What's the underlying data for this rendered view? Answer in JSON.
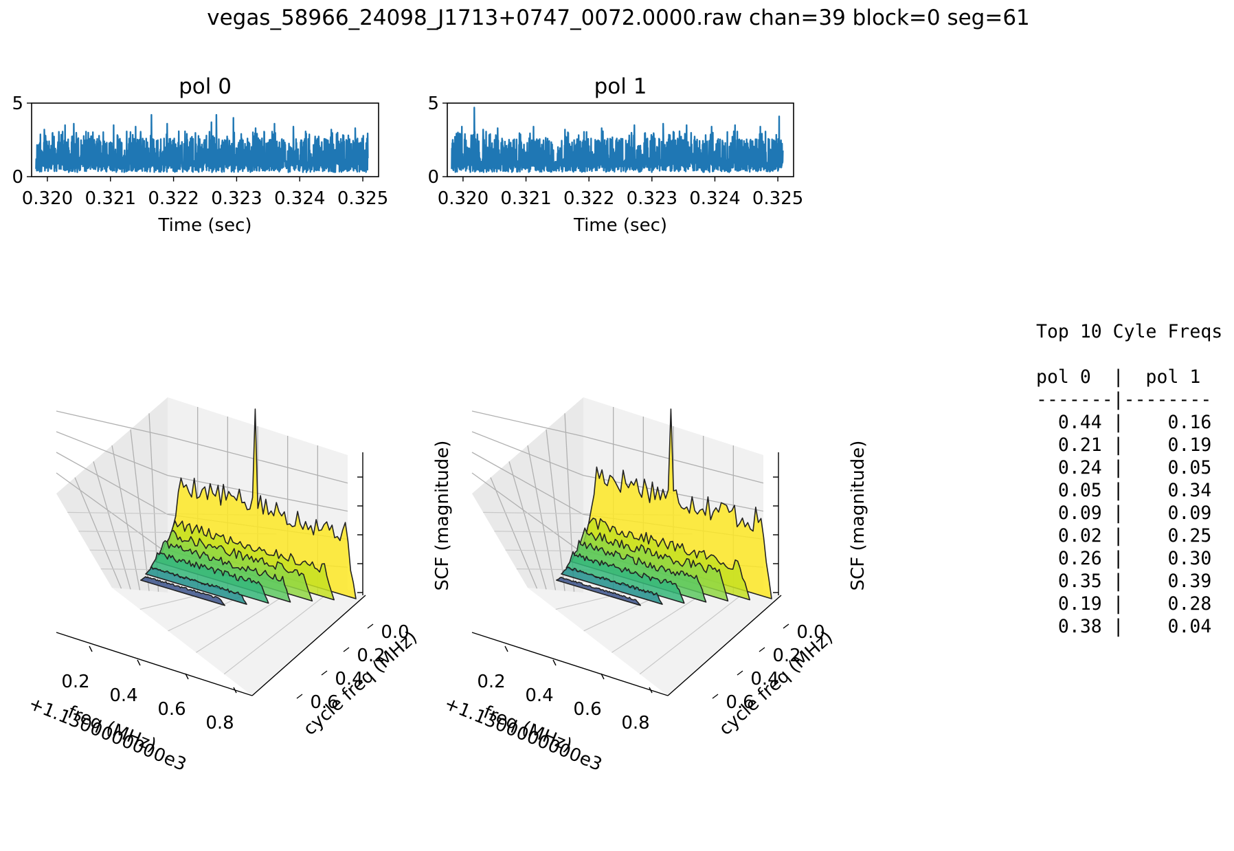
{
  "title": "vegas_58966_24098_J1713+0747_0072.0000.raw chan=39 block=0 seg=61",
  "chart_data": [
    {
      "type": "line",
      "title": "pol 0",
      "xlabel": "Time (sec)",
      "ylabel": "",
      "xlim": [
        0.31975,
        0.32525
      ],
      "ylim": [
        0,
        5
      ],
      "xticks": [
        "0.320",
        "0.321",
        "0.322",
        "0.323",
        "0.324",
        "0.325"
      ],
      "yticks": [
        "0",
        "5"
      ],
      "color": "#1f77b4",
      "series": [
        {
          "x_range": [
            0.31982,
            0.32508
          ],
          "points": 1600,
          "typical_range": [
            0.3,
            2.6
          ],
          "max": 4.2,
          "spikes": [
            [
              0.31995,
              3.2
            ],
            [
              0.32028,
              3.5
            ],
            [
              0.32042,
              3.6
            ],
            [
              0.32105,
              3.5
            ],
            [
              0.3214,
              3.4
            ],
            [
              0.32165,
              4.2
            ],
            [
              0.3219,
              3.6
            ],
            [
              0.3226,
              3.7
            ],
            [
              0.32268,
              4.2
            ],
            [
              0.32295,
              4.0
            ],
            [
              0.3233,
              3.3
            ],
            [
              0.3236,
              3.6
            ],
            [
              0.3239,
              3.4
            ],
            [
              0.3245,
              3.2
            ],
            [
              0.32488,
              3.3
            ]
          ]
        }
      ]
    },
    {
      "type": "line",
      "title": "pol 1",
      "xlabel": "Time (sec)",
      "ylabel": "",
      "xlim": [
        0.31975,
        0.32525
      ],
      "ylim": [
        0,
        5
      ],
      "xticks": [
        "0.320",
        "0.321",
        "0.322",
        "0.323",
        "0.324",
        "0.325"
      ],
      "yticks": [
        "0",
        "5"
      ],
      "color": "#1f77b4",
      "series": [
        {
          "x_range": [
            0.31982,
            0.32508
          ],
          "points": 1600,
          "typical_range": [
            0.3,
            2.6
          ],
          "max": 4.7,
          "spikes": [
            [
              0.31998,
              3.4
            ],
            [
              0.32018,
              4.7
            ],
            [
              0.32032,
              3.2
            ],
            [
              0.32055,
              3.3
            ],
            [
              0.32112,
              3.4
            ],
            [
              0.32162,
              3.2
            ],
            [
              0.3222,
              3.3
            ],
            [
              0.32272,
              3.5
            ],
            [
              0.32318,
              3.6
            ],
            [
              0.32355,
              3.5
            ],
            [
              0.32395,
              3.4
            ],
            [
              0.32432,
              3.5
            ],
            [
              0.32472,
              3.4
            ],
            [
              0.32502,
              4.1
            ]
          ]
        }
      ]
    },
    {
      "type": "area",
      "subtype": "3d-waterfall",
      "title": "",
      "xlabel": "freq (MHz)",
      "x_offset_label": "+1.1300000000e3",
      "ylabel": "cycle freq (MHz)",
      "zlabel": "SCF (magnitude)",
      "xticks": [
        "0.2",
        "0.4",
        "0.6",
        "0.8"
      ],
      "yticks": [
        "0.0",
        "0.2",
        "0.4",
        "0.6"
      ],
      "colormap": "viridis",
      "ridges": [
        {
          "cycle_freq": 0.0,
          "color": "#fde725",
          "level": 0.62,
          "peak": 1.0
        },
        {
          "cycle_freq": 0.1,
          "color": "#c5e021",
          "level": 0.28,
          "peak": 0.5
        },
        {
          "cycle_freq": 0.2,
          "color": "#90d743",
          "level": 0.24,
          "peak": 0.45
        },
        {
          "cycle_freq": 0.3,
          "color": "#5ec962",
          "level": 0.2,
          "peak": 0.35
        },
        {
          "cycle_freq": 0.4,
          "color": "#35b779",
          "level": 0.16,
          "peak": 0.3
        },
        {
          "cycle_freq": 0.5,
          "color": "#21918c",
          "level": 0.08,
          "peak": 0.18
        },
        {
          "cycle_freq": 0.6,
          "color": "#3b528b",
          "level": 0.05,
          "peak": 0.12
        }
      ]
    },
    {
      "type": "area",
      "subtype": "3d-waterfall",
      "title": "",
      "xlabel": "freq (MHz)",
      "x_offset_label": "+1.1300000000e3",
      "ylabel": "cycle freq (MHz)",
      "zlabel": "SCF (magnitude)",
      "xticks": [
        "0.2",
        "0.4",
        "0.6",
        "0.8"
      ],
      "yticks": [
        "0.0",
        "0.2",
        "0.4",
        "0.6"
      ],
      "colormap": "viridis",
      "ridges": [
        {
          "cycle_freq": 0.0,
          "color": "#fde725",
          "level": 0.72,
          "peak": 1.0
        },
        {
          "cycle_freq": 0.1,
          "color": "#c5e021",
          "level": 0.3,
          "peak": 0.5
        },
        {
          "cycle_freq": 0.2,
          "color": "#90d743",
          "level": 0.25,
          "peak": 0.42
        },
        {
          "cycle_freq": 0.3,
          "color": "#5ec962",
          "level": 0.2,
          "peak": 0.35
        },
        {
          "cycle_freq": 0.4,
          "color": "#35b779",
          "level": 0.15,
          "peak": 0.28
        },
        {
          "cycle_freq": 0.5,
          "color": "#21918c",
          "level": 0.08,
          "peak": 0.16
        },
        {
          "cycle_freq": 0.6,
          "color": "#3b528b",
          "level": 0.04,
          "peak": 0.1
        }
      ]
    },
    {
      "type": "table",
      "title": "Top 10 Cyle Freqs",
      "columns": [
        "pol 0",
        "pol 1"
      ],
      "separator": "-------|--------",
      "rows": [
        [
          "0.44",
          "0.16"
        ],
        [
          "0.21",
          "0.19"
        ],
        [
          "0.24",
          "0.05"
        ],
        [
          "0.05",
          "0.34"
        ],
        [
          "0.09",
          "0.09"
        ],
        [
          "0.02",
          "0.25"
        ],
        [
          "0.26",
          "0.30"
        ],
        [
          "0.35",
          "0.39"
        ],
        [
          "0.19",
          "0.28"
        ],
        [
          "0.38",
          "0.04"
        ]
      ]
    }
  ]
}
